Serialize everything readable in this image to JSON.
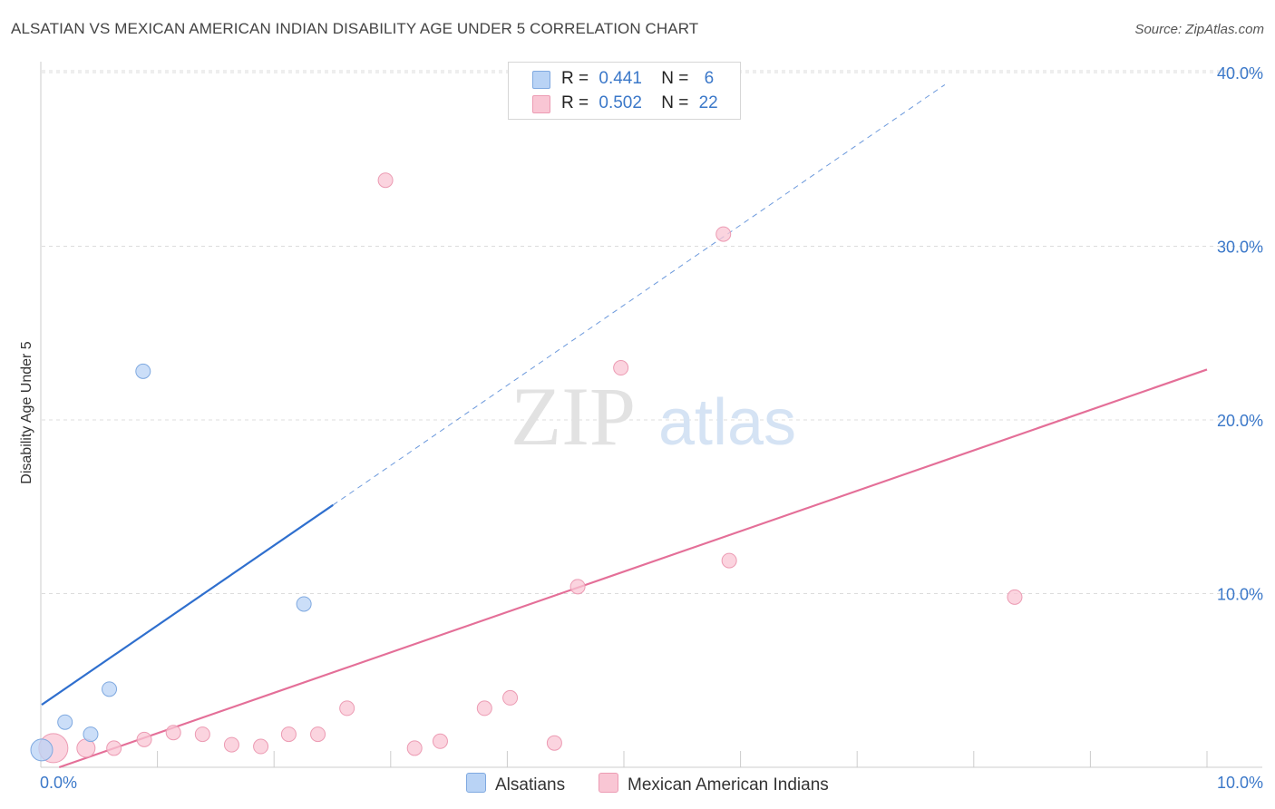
{
  "header": {
    "title": "ALSATIAN VS MEXICAN AMERICAN INDIAN DISABILITY AGE UNDER 5 CORRELATION CHART",
    "source": "Source: ZipAtlas.com"
  },
  "watermark": {
    "zip": "ZIP",
    "atlas": "atlas"
  },
  "legend": {
    "rows": [
      {
        "r_label": "R =",
        "r_value": "0.441",
        "n_label": "N =",
        "n_value": "6",
        "color": "#b9d3f5",
        "border": "#7fa9e0"
      },
      {
        "r_label": "R =",
        "r_value": "0.502",
        "n_label": "N =",
        "n_value": "22",
        "color": "#f9c6d4",
        "border": "#ec9bb3"
      }
    ]
  },
  "bottom_legend": {
    "items": [
      {
        "label": "Alsatians",
        "color": "#b9d3f5",
        "border": "#7fa9e0"
      },
      {
        "label": "Mexican American Indians",
        "color": "#f9c6d4",
        "border": "#ec9bb3"
      }
    ]
  },
  "chart_data": {
    "type": "scatter",
    "title": "ALSATIAN VS MEXICAN AMERICAN INDIAN DISABILITY AGE UNDER 5 CORRELATION CHART",
    "xlabel": "",
    "ylabel": "Disability Age Under 5",
    "xlim": [
      0,
      10
    ],
    "ylim": [
      0,
      40
    ],
    "x_tick_labels": [
      "0.0%",
      "10.0%"
    ],
    "y_ticks": [
      {
        "value": 10,
        "label": "10.0%"
      },
      {
        "value": 20,
        "label": "20.0%"
      },
      {
        "value": 30,
        "label": "30.0%"
      },
      {
        "value": 40,
        "label": "40.0%"
      }
    ],
    "series": [
      {
        "name": "Alsatians",
        "color": "#b9d3f5",
        "stroke": "#7fa9e0",
        "line_color": "#2f6fce",
        "points": [
          {
            "x": 0.0,
            "y": 1.0,
            "size": 12
          },
          {
            "x": 0.2,
            "y": 2.6,
            "size": 8
          },
          {
            "x": 0.42,
            "y": 1.9,
            "size": 8
          },
          {
            "x": 0.58,
            "y": 4.5,
            "size": 8
          },
          {
            "x": 0.87,
            "y": 22.8,
            "size": 8
          },
          {
            "x": 2.25,
            "y": 9.4,
            "size": 8
          }
        ],
        "trend": {
          "x0": 0.0,
          "y0": 3.6,
          "x1": 2.5,
          "y1": 15.1,
          "dashed_to_x": 7.75,
          "dashed_to_y": 39.3
        }
      },
      {
        "name": "Mexican American Indians",
        "color": "#f9c6d4",
        "stroke": "#ec9bb3",
        "line_color": "#e46f98",
        "points": [
          {
            "x": 0.1,
            "y": 1.1,
            "size": 16
          },
          {
            "x": 0.38,
            "y": 1.1,
            "size": 10
          },
          {
            "x": 0.62,
            "y": 1.1,
            "size": 8
          },
          {
            "x": 0.88,
            "y": 1.6,
            "size": 8
          },
          {
            "x": 1.13,
            "y": 2.0,
            "size": 8
          },
          {
            "x": 1.38,
            "y": 1.9,
            "size": 8
          },
          {
            "x": 1.63,
            "y": 1.3,
            "size": 8
          },
          {
            "x": 1.88,
            "y": 1.2,
            "size": 8
          },
          {
            "x": 2.12,
            "y": 1.9,
            "size": 8
          },
          {
            "x": 2.37,
            "y": 1.9,
            "size": 8
          },
          {
            "x": 2.62,
            "y": 3.4,
            "size": 8
          },
          {
            "x": 3.2,
            "y": 1.1,
            "size": 8
          },
          {
            "x": 3.42,
            "y": 1.5,
            "size": 8
          },
          {
            "x": 3.8,
            "y": 3.4,
            "size": 8
          },
          {
            "x": 4.02,
            "y": 4.0,
            "size": 8
          },
          {
            "x": 4.4,
            "y": 1.4,
            "size": 8
          },
          {
            "x": 4.6,
            "y": 10.4,
            "size": 8
          },
          {
            "x": 4.97,
            "y": 23.0,
            "size": 8
          },
          {
            "x": 2.95,
            "y": 33.8,
            "size": 8
          },
          {
            "x": 5.85,
            "y": 30.7,
            "size": 8
          },
          {
            "x": 5.9,
            "y": 11.9,
            "size": 8
          },
          {
            "x": 8.35,
            "y": 9.8,
            "size": 8
          }
        ],
        "trend": {
          "x0": 0.15,
          "y0": 0.0,
          "x1": 10.0,
          "y1": 22.9
        }
      }
    ]
  }
}
